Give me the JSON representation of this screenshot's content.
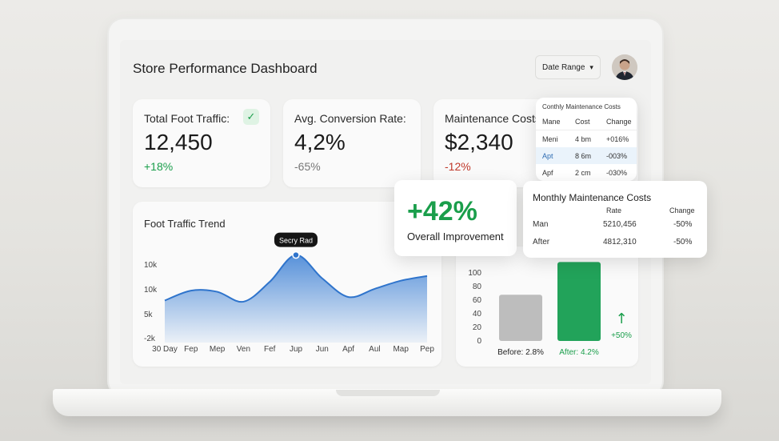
{
  "header": {
    "title": "Store Performance Dashboard",
    "date_range_label": "Date Range",
    "chevron_glyph": "▾"
  },
  "kpis": {
    "foot_traffic": {
      "label": "Total Foot Traffic:",
      "value": "12,450",
      "delta": "+18%",
      "check_glyph": "✓"
    },
    "conversion": {
      "label": "Avg. Conversion Rate:",
      "value": "4,2%",
      "delta": "-65%"
    },
    "maintenance": {
      "label": "Maintenance Costs:",
      "value": "$2,340",
      "delta": "-12%"
    }
  },
  "mini_table": {
    "title": "Conthly Maintenance Costs",
    "headers": [
      "Mane",
      "Cost",
      "Change"
    ],
    "rows": [
      {
        "name": "Meni",
        "cost": "4 bm",
        "change": "+016%"
      },
      {
        "name": "Apt",
        "cost": "8 6m",
        "change": "-003%"
      },
      {
        "name": "Apf",
        "cost": "2 cm",
        "change": "-030%"
      }
    ]
  },
  "improvement": {
    "value": "+42%",
    "label": "Overall Improvement"
  },
  "monthly_table": {
    "title": "Monthly Maintenance Costs",
    "headers": [
      "Rate",
      "Change"
    ],
    "rows": [
      {
        "name": "Man",
        "rate": "5210,456",
        "change": "-50%"
      },
      {
        "name": "After",
        "rate": "4812,310",
        "change": "-50%"
      }
    ]
  },
  "colors": {
    "accent_blue": "#3b7fd4",
    "positive_green": "#1a9e4b",
    "negative_red": "#c0392b",
    "bar_grey": "#bdbdbd",
    "bar_green": "#22a35a"
  },
  "chart_data": [
    {
      "type": "area",
      "title": "Foot Traffic Trend",
      "x_ticks": [
        "30 Day",
        "Fep",
        "Mep",
        "Ven",
        "Fef",
        "Jup",
        "Jun",
        "Apf",
        "Aul",
        "Map",
        "Pep"
      ],
      "y_ticks": [
        "-2k",
        "5k",
        "10k",
        "10k"
      ],
      "values": [
        5.2,
        6.9,
        6.7,
        5.0,
        8.4,
        13.0,
        9.0,
        5.8,
        7.2,
        8.6,
        9.4
      ],
      "ylim": [
        -2,
        15
      ],
      "tooltip": {
        "label": "Secry Rad",
        "index": 5
      }
    },
    {
      "type": "bar",
      "categories": [
        "Before: 2.8%",
        "After: 4.2%"
      ],
      "values": [
        68,
        116
      ],
      "y_ticks": [
        "0",
        "20",
        "40",
        "60",
        "80",
        "100"
      ],
      "ylim": [
        0,
        120
      ],
      "annotation": {
        "arrow_glyph": "↑",
        "text": "+50%"
      }
    }
  ]
}
